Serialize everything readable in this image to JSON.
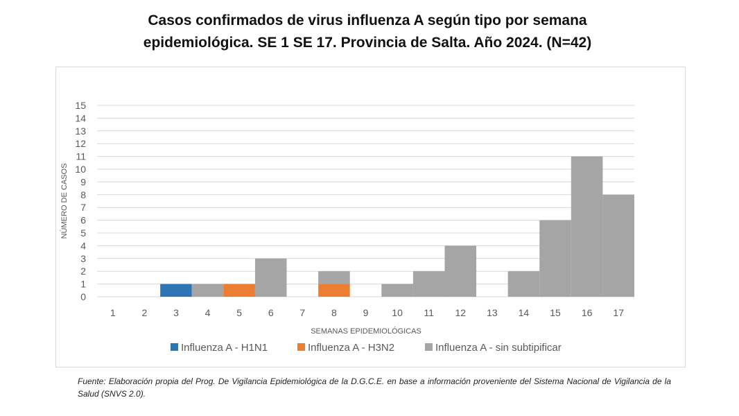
{
  "chart_data": {
    "type": "bar",
    "stacked": true,
    "title_line1": "Casos confirmados de virus influenza A según tipo por semana",
    "title_line2": "epidemiológica. SE 1 SE 17. Provincia de Salta. Año 2024. (N=42)",
    "xlabel": "SEMANAS EPIDEMIOLÓGICAS",
    "ylabel": "NÚMERO DE CASOS",
    "ylim": [
      0,
      15
    ],
    "yticks": [
      "0",
      "1",
      "2",
      "3",
      "4",
      "5",
      "6",
      "7",
      "8",
      "9",
      "10",
      "11",
      "12",
      "13",
      "14",
      "15"
    ],
    "categories": [
      "1",
      "2",
      "3",
      "4",
      "5",
      "6",
      "7",
      "8",
      "9",
      "10",
      "11",
      "12",
      "13",
      "14",
      "15",
      "16",
      "17"
    ],
    "series": [
      {
        "name": "Influenza A - H1N1",
        "color": "#2E75B6",
        "values": [
          0,
          0,
          1,
          0,
          0,
          0,
          0,
          0,
          0,
          0,
          0,
          0,
          0,
          0,
          0,
          0,
          0
        ]
      },
      {
        "name": "Influenza A - H3N2",
        "color": "#ED7D31",
        "values": [
          0,
          0,
          0,
          0,
          1,
          0,
          0,
          1,
          0,
          0,
          0,
          0,
          0,
          0,
          0,
          0,
          0
        ]
      },
      {
        "name": "Influenza A - sin subtipificar",
        "color": "#A5A5A5",
        "values": [
          0,
          0,
          0,
          1,
          0,
          3,
          0,
          1,
          0,
          1,
          2,
          4,
          0,
          2,
          6,
          11,
          8
        ]
      }
    ],
    "grid": true,
    "legend_position": "bottom"
  },
  "source_text": "Fuente: Elaboración propia del Prog. De Vigilancia Epidemiológica de la D.G.C.E. en base a información proveniente del Sistema Nacional de Vigilancia de la Salud (SNVS 2.0)."
}
